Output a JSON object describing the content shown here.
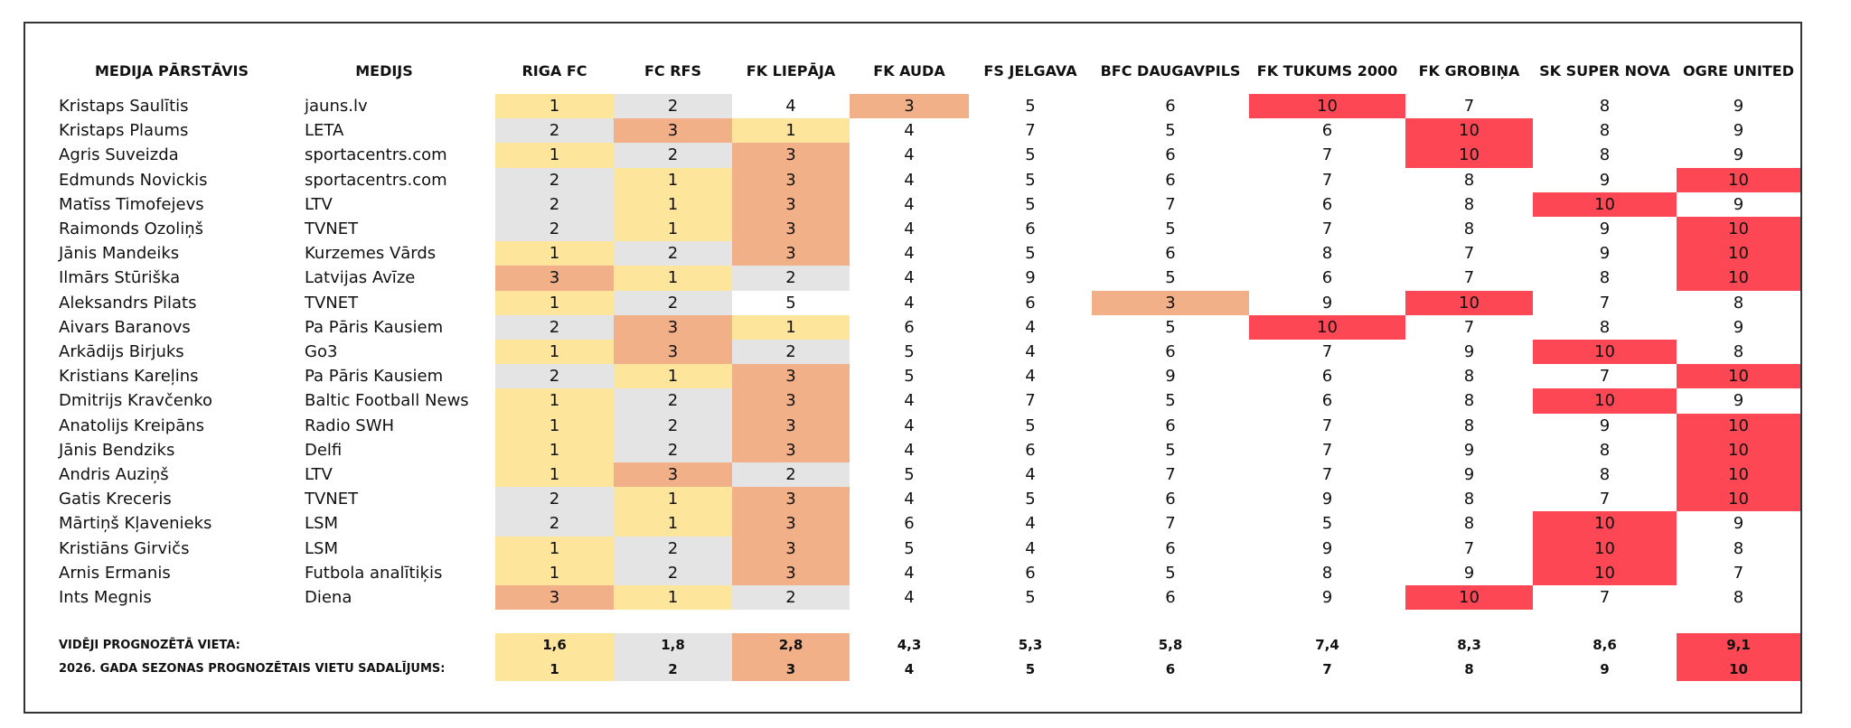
{
  "table": {
    "columns": [
      "MEDIJA PĀRSTĀVIS",
      "MEDIJS",
      "RIGA FC",
      "FC RFS",
      "FK LIEPĀJA",
      "FK AUDA",
      "FS JELGAVA",
      "BFC DAUGAVPILS",
      "FK TUKUMS 2000",
      "FK GROBIŅA",
      "SK SUPER NOVA",
      "OGRE UNITED"
    ],
    "rows": [
      [
        "Kristaps Saulītis",
        "jauns.lv",
        1,
        2,
        4,
        3,
        5,
        6,
        10,
        7,
        8,
        9
      ],
      [
        "Kristaps Plaums",
        "LETA",
        2,
        3,
        1,
        4,
        7,
        5,
        6,
        10,
        8,
        9
      ],
      [
        "Agris Suveizda",
        "sportacentrs.com",
        1,
        2,
        3,
        4,
        5,
        6,
        7,
        10,
        8,
        9
      ],
      [
        "Edmunds Novickis",
        "sportacentrs.com",
        2,
        1,
        3,
        4,
        5,
        6,
        7,
        8,
        9,
        10
      ],
      [
        "Matīss Timofejevs",
        "LTV",
        2,
        1,
        3,
        4,
        5,
        7,
        6,
        8,
        10,
        9
      ],
      [
        "Raimonds Ozoliņš",
        "TVNET",
        2,
        1,
        3,
        4,
        6,
        5,
        7,
        8,
        9,
        10
      ],
      [
        "Jānis Mandeiks",
        "Kurzemes Vārds",
        1,
        2,
        3,
        4,
        5,
        6,
        8,
        7,
        9,
        10
      ],
      [
        "Ilmārs Stūriška",
        "Latvijas Avīze",
        3,
        1,
        2,
        4,
        9,
        5,
        6,
        7,
        8,
        10
      ],
      [
        "Aleksandrs Pilats",
        "TVNET",
        1,
        2,
        5,
        4,
        6,
        3,
        9,
        10,
        7,
        8
      ],
      [
        "Aivars Baranovs",
        "Pa Pāris Kausiem",
        2,
        3,
        1,
        6,
        4,
        5,
        10,
        7,
        8,
        9
      ],
      [
        "Arkādijs Birjuks",
        "Go3",
        1,
        3,
        2,
        5,
        4,
        6,
        7,
        9,
        10,
        8
      ],
      [
        "Kristians Kareļins",
        "Pa Pāris Kausiem",
        2,
        1,
        3,
        5,
        4,
        9,
        6,
        8,
        7,
        10
      ],
      [
        "Dmitrijs Kravčenko",
        "Baltic Football News",
        1,
        2,
        3,
        4,
        7,
        5,
        6,
        8,
        10,
        9
      ],
      [
        "Anatolijs Kreipāns",
        "Radio SWH",
        1,
        2,
        3,
        4,
        5,
        6,
        7,
        8,
        9,
        10
      ],
      [
        "Jānis Bendziks",
        "Delfi",
        1,
        2,
        3,
        4,
        6,
        5,
        7,
        9,
        8,
        10
      ],
      [
        "Andris Auziņš",
        "LTV",
        1,
        3,
        2,
        5,
        4,
        7,
        7,
        9,
        8,
        10
      ],
      [
        "Gatis Kreceris",
        "TVNET",
        2,
        1,
        3,
        4,
        5,
        6,
        9,
        8,
        7,
        10
      ],
      [
        "Mārtiņš Kļavenieks",
        "LSM",
        2,
        1,
        3,
        6,
        4,
        7,
        5,
        8,
        10,
        9
      ],
      [
        "Kristiāns Girvičs",
        "LSM",
        1,
        2,
        3,
        5,
        4,
        6,
        9,
        7,
        10,
        8
      ],
      [
        "Arnis Ermanis",
        "Futbola analītiķis",
        1,
        2,
        3,
        4,
        6,
        5,
        8,
        9,
        10,
        7
      ],
      [
        "Ints Megnis",
        "Diena",
        3,
        1,
        2,
        4,
        5,
        6,
        9,
        10,
        7,
        8
      ]
    ],
    "average": {
      "label": "VIDĒJI PROGNOZĒTĀ VIETA:",
      "values": [
        "1,6",
        "1,8",
        "2,8",
        "4,3",
        "5,3",
        "5,8",
        "7,4",
        "8,3",
        "8,6",
        "9,1"
      ]
    },
    "ranking": {
      "label": "2026. GADA SEZONAS PROGNOZĒTAIS VIETU SADALĪJUMS:",
      "values": [
        1,
        2,
        3,
        4,
        5,
        6,
        7,
        8,
        9,
        10
      ]
    },
    "cell_colors": {
      "1": "#fde59c",
      "2": "#e4e4e4",
      "3": "#f2b089",
      "10": "#fd4755"
    }
  }
}
